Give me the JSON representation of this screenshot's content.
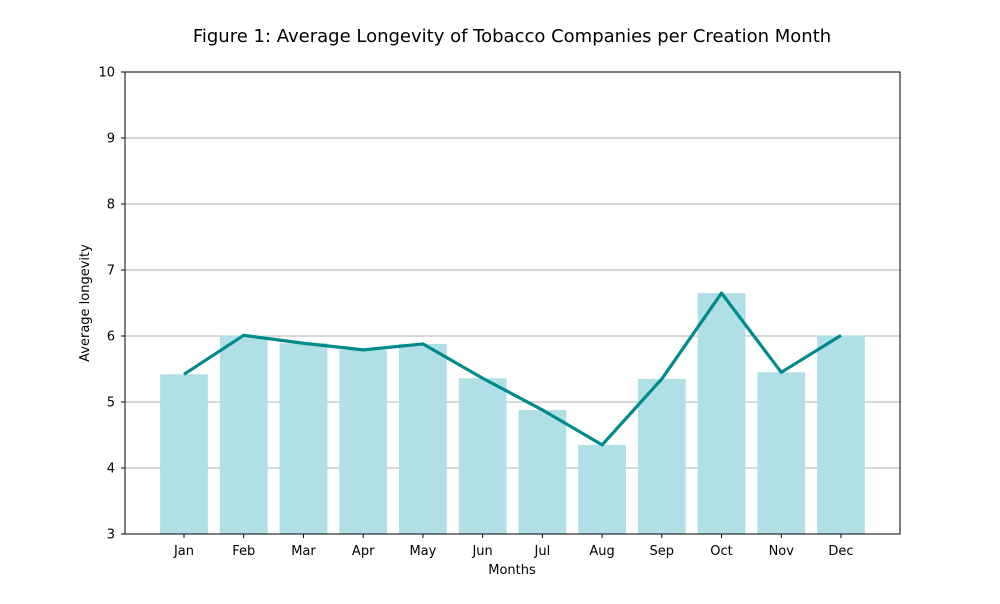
{
  "chart_data": {
    "type": "bar",
    "title": "Figure 1: Average Longevity of Tobacco Companies per Creation Month",
    "xlabel": "Months",
    "ylabel": "Average longevity",
    "categories": [
      "Jan",
      "Feb",
      "Mar",
      "Apr",
      "May",
      "Jun",
      "Jul",
      "Aug",
      "Sep",
      "Oct",
      "Nov",
      "Dec"
    ],
    "values": [
      5.42,
      6.01,
      5.89,
      5.79,
      5.88,
      5.36,
      4.88,
      4.35,
      5.35,
      6.65,
      5.45,
      6.01
    ],
    "line_values": [
      5.42,
      6.01,
      5.89,
      5.79,
      5.88,
      5.36,
      4.88,
      4.35,
      5.35,
      6.65,
      5.45,
      6.01
    ],
    "ylim": [
      3,
      10
    ],
    "yticks": [
      "3",
      "4",
      "5",
      "6",
      "7",
      "8",
      "9",
      "10"
    ],
    "grid": "horizontal",
    "colors": {
      "bar": "#b0e0e6",
      "line": "#008b8b",
      "grid": "#b0b0b0",
      "axis": "#000000"
    }
  }
}
